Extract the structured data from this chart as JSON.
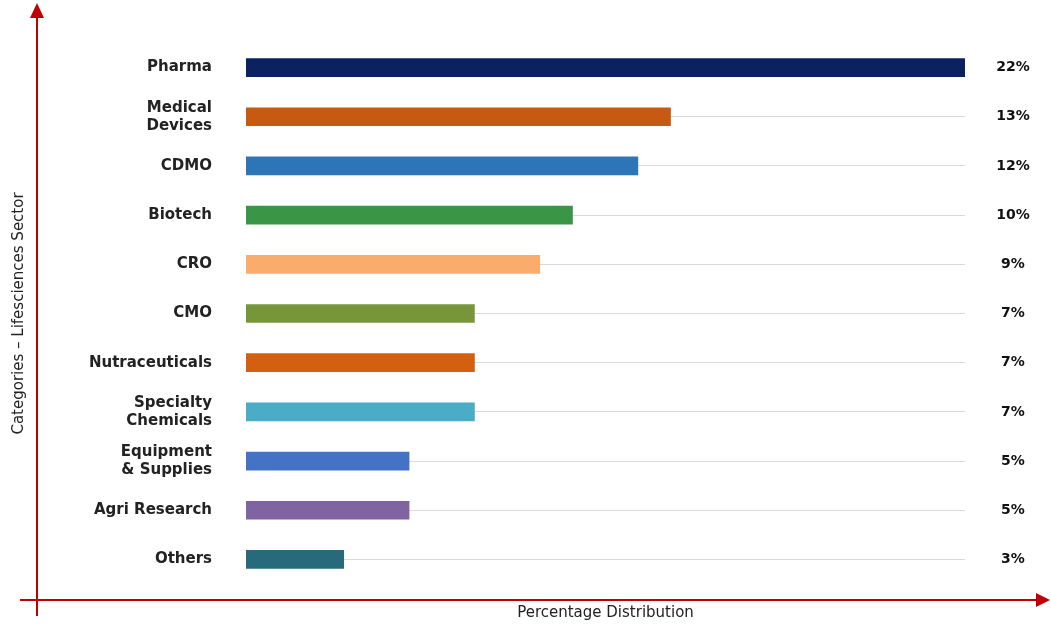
{
  "chart_data": {
    "type": "bar",
    "orientation": "horizontal",
    "xlabel": "Percentage Distribution",
    "ylabel": "Categories – Lifesciences Sector",
    "categories": [
      "Pharma",
      "Medical Devices",
      "CDMO",
      "Biotech",
      "CRO",
      "CMO",
      "Nutraceuticals",
      "Specialty Chemicals",
      "Equipment & Supplies",
      "Agri Research",
      "Others"
    ],
    "values": [
      22,
      13,
      12,
      10,
      9,
      7,
      7,
      7,
      5,
      5,
      3
    ],
    "value_labels": [
      "22%",
      "13%",
      "12%",
      "10%",
      "9%",
      "7%",
      "7%",
      "7%",
      "5%",
      "5%",
      "3%"
    ],
    "colors": [
      "#0b2260",
      "#c65a11",
      "#2e75b6",
      "#3a9646",
      "#f9ac6c",
      "#77963a",
      "#d26010",
      "#4bacc6",
      "#4472c4",
      "#8064a2",
      "#276a7c"
    ],
    "xlim": [
      0,
      22
    ],
    "tick_labels": "y",
    "grid": "y",
    "legend": false
  }
}
